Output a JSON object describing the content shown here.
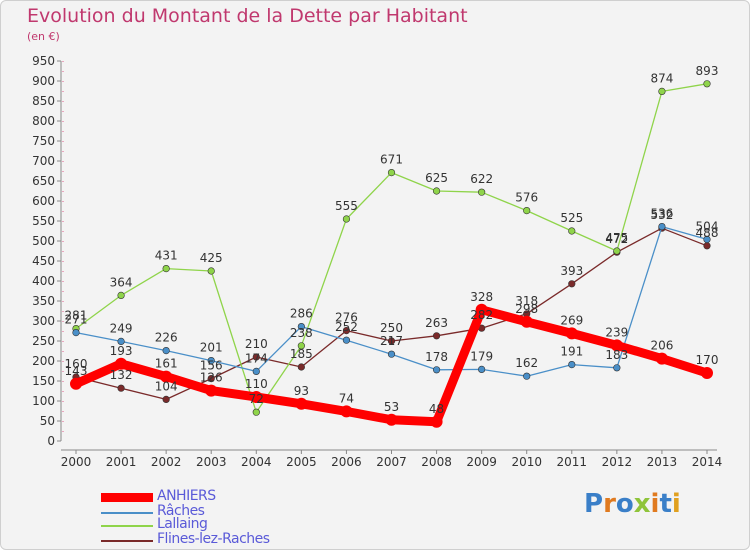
{
  "title": "Evolution du Montant de la Dette par Habitant",
  "subtitle": "(en €)",
  "logo": "Proxiti",
  "chart_data": {
    "type": "line",
    "x": [
      "2000",
      "2001",
      "2002",
      "2003",
      "2004",
      "2005",
      "2006",
      "2007",
      "2008",
      "2009",
      "2010",
      "2011",
      "2012",
      "2013",
      "2014"
    ],
    "ylim": [
      0,
      950
    ],
    "ytick_step": 50,
    "grid": false,
    "legend_position": "bottom-left",
    "series": [
      {
        "name": "ANHIERS",
        "color": "#ff0000",
        "values": [
          143,
          193,
          161,
          126,
          110,
          93,
          74,
          53,
          48,
          328,
          298,
          269,
          239,
          206,
          170
        ],
        "labels": [
          "143",
          "193",
          "161",
          "126",
          "110",
          "93",
          "74",
          "53",
          "48",
          "328",
          "298",
          "269",
          "239",
          "206",
          "170"
        ]
      },
      {
        "name": "Râches",
        "color": "#4a8fc8",
        "values": [
          271,
          249,
          226,
          201,
          174,
          286,
          252,
          217,
          178,
          179,
          162,
          191,
          183,
          536,
          504
        ],
        "labels": [
          "271",
          "249",
          "226",
          "201",
          "174",
          "286",
          "252",
          "217",
          "178",
          "179",
          "162",
          "191",
          "183",
          "536",
          "504"
        ]
      },
      {
        "name": "Lallaing",
        "color": "#8fd44a",
        "values": [
          281,
          364,
          431,
          425,
          72,
          238,
          555,
          671,
          625,
          622,
          576,
          525,
          475,
          874,
          893
        ],
        "labels": [
          "281",
          "364",
          "431",
          "425",
          "72",
          "238",
          "555",
          "671",
          "625",
          "622",
          "576",
          "525",
          "475",
          "874",
          "893"
        ]
      },
      {
        "name": "Flines-lez-Raches",
        "color": "#7a2a2a",
        "values": [
          160,
          132,
          104,
          156,
          210,
          185,
          276,
          250,
          263,
          282,
          318,
          393,
          472,
          532,
          488
        ],
        "labels": [
          "160",
          "132",
          "104",
          "156",
          "210",
          "185",
          "276",
          "250",
          "263",
          "282",
          "318",
          "393",
          "472",
          "532",
          "488"
        ]
      }
    ]
  }
}
